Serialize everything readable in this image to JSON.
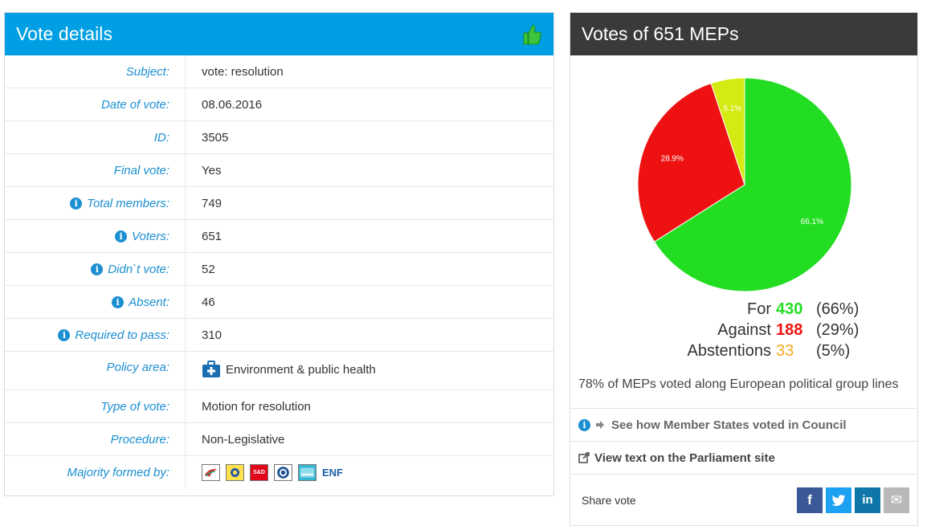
{
  "vote_details": {
    "title": "Vote details",
    "rows": [
      {
        "label": "Subject:",
        "value": "vote: resolution",
        "info": false
      },
      {
        "label": "Date of vote:",
        "value": "08.06.2016",
        "info": false
      },
      {
        "label": "ID:",
        "value": "3505",
        "info": false
      },
      {
        "label": "Final vote:",
        "value": "Yes",
        "info": false
      },
      {
        "label": "Total members:",
        "value": "749",
        "info": true
      },
      {
        "label": "Voters:",
        "value": "651",
        "info": true
      },
      {
        "label": "Didn`t vote:",
        "value": "52",
        "info": true
      },
      {
        "label": "Absent:",
        "value": "46",
        "info": true
      },
      {
        "label": "Required to pass:",
        "value": "310",
        "info": true
      },
      {
        "label": "Policy area:",
        "value": "Environment & public health",
        "info": false
      },
      {
        "label": "Type of vote:",
        "value": "Motion for resolution",
        "info": false
      },
      {
        "label": "Procedure:",
        "value": "Non-Legislative",
        "info": false
      },
      {
        "label": "Majority formed by:",
        "value": "ENF",
        "info": false
      }
    ],
    "group_logo_labels": [
      "S&D"
    ]
  },
  "meps_votes": {
    "title": "Votes of 651 MEPs",
    "totals": [
      {
        "name": "For",
        "count": "430",
        "pct": "(66%)",
        "color": "#22dd22"
      },
      {
        "name": "Against",
        "count": "188",
        "pct": "(29%)",
        "color": "#ee1111"
      },
      {
        "name": "Abstentions",
        "count": "33",
        "pct": "(5%)",
        "color": "#f5a623"
      }
    ],
    "summary": "78% of MEPs voted along European political group lines",
    "council_link": "See how Member States voted in Council",
    "parliament_link": "View text on the Parliament site",
    "share_label": "Share vote",
    "share_buttons": [
      {
        "name": "facebook",
        "glyph": "f"
      },
      {
        "name": "twitter",
        "glyph": "t"
      },
      {
        "name": "linkedin",
        "glyph": "in"
      },
      {
        "name": "email",
        "glyph": "✉"
      }
    ]
  },
  "chart_data": {
    "type": "pie",
    "title": "",
    "slices": [
      {
        "label": "66.1%",
        "value": 66.1,
        "color": "#22dd22"
      },
      {
        "label": "28.9%",
        "value": 28.9,
        "color": "#ee1111"
      },
      {
        "label": "5.1%",
        "value": 5.1,
        "color": "#d4ea12"
      }
    ]
  }
}
